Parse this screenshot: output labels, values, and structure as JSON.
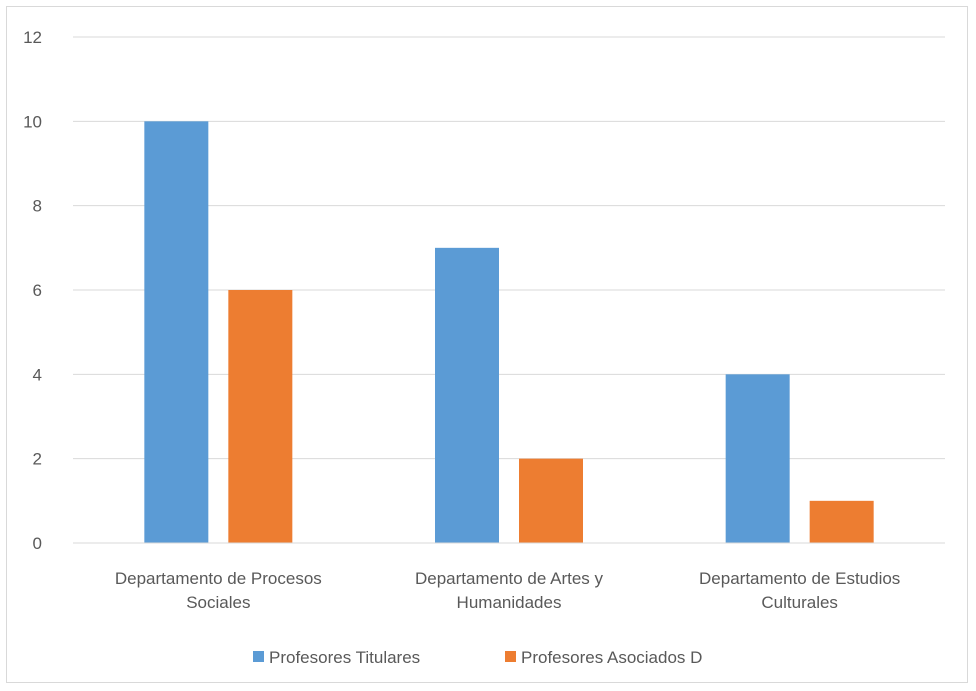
{
  "chart_data": {
    "type": "bar",
    "categories": [
      [
        "Departamento de Procesos",
        "Sociales"
      ],
      [
        "Departamento de Artes y",
        "Humanidades"
      ],
      [
        "Departamento de Estudios",
        "Culturales"
      ]
    ],
    "series": [
      {
        "name": "Profesores Titulares",
        "values": [
          10,
          7,
          4
        ],
        "color": "#5b9bd5"
      },
      {
        "name": "Profesores Asociados D",
        "values": [
          6,
          2,
          1
        ],
        "color": "#ed7d31"
      }
    ],
    "ylim": [
      0,
      12
    ],
    "yticks": [
      0,
      2,
      4,
      6,
      8,
      10,
      12
    ],
    "grid": true,
    "legend_position": "bottom",
    "title": "",
    "xlabel": "",
    "ylabel": ""
  }
}
